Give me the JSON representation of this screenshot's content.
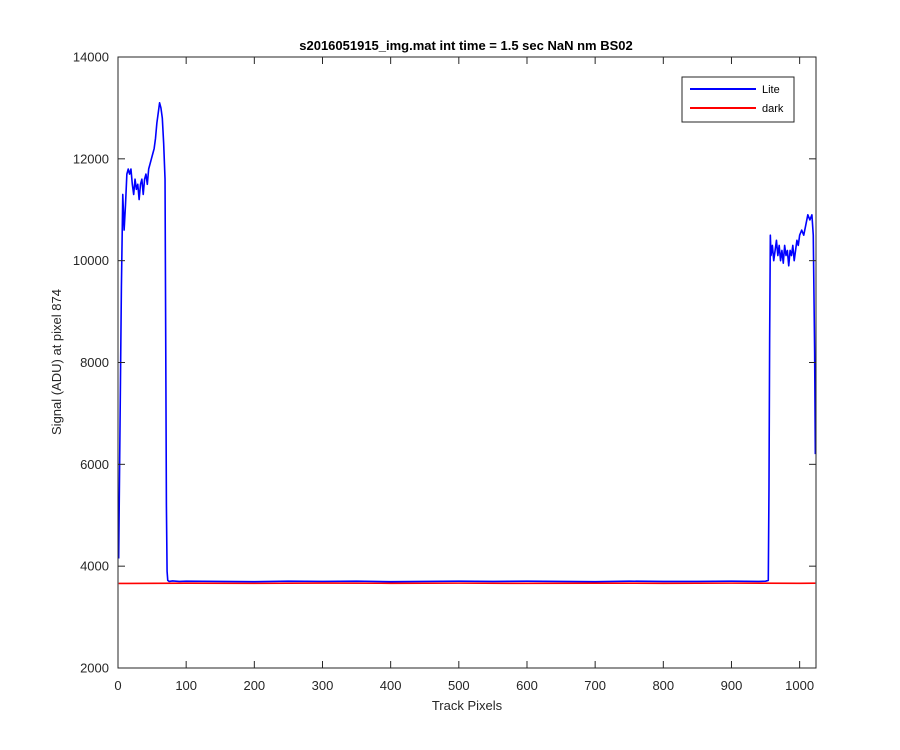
{
  "colors": {
    "background": "#ffffff",
    "axis": "#262626",
    "lite": "#0000ff",
    "dark": "#ff0000"
  },
  "chart_data": {
    "type": "line",
    "title": "s2016051915_img.mat int time = 1.5 sec  NaN nm BS02",
    "xlabel": "Track Pixels",
    "ylabel": "Signal (ADU) at pixel 874",
    "xlim": [
      0,
      1024
    ],
    "ylim": [
      2000,
      14000
    ],
    "xticks": [
      0,
      100,
      200,
      300,
      400,
      500,
      600,
      700,
      800,
      900,
      1000
    ],
    "yticks": [
      2000,
      4000,
      6000,
      8000,
      10000,
      12000,
      14000
    ],
    "grid": false,
    "legend_position": "top-right",
    "series": [
      {
        "name": "Lite",
        "color": "#0000ff",
        "points": [
          [
            1,
            4150
          ],
          [
            3,
            6800
          ],
          [
            5,
            9500
          ],
          [
            7,
            11300
          ],
          [
            9,
            10600
          ],
          [
            11,
            11100
          ],
          [
            13,
            11700
          ],
          [
            15,
            11800
          ],
          [
            17,
            11700
          ],
          [
            19,
            11800
          ],
          [
            21,
            11500
          ],
          [
            23,
            11300
          ],
          [
            25,
            11600
          ],
          [
            27,
            11400
          ],
          [
            29,
            11500
          ],
          [
            31,
            11200
          ],
          [
            33,
            11500
          ],
          [
            35,
            11600
          ],
          [
            37,
            11300
          ],
          [
            39,
            11600
          ],
          [
            41,
            11700
          ],
          [
            43,
            11500
          ],
          [
            45,
            11800
          ],
          [
            47,
            11900
          ],
          [
            49,
            12000
          ],
          [
            51,
            12100
          ],
          [
            53,
            12200
          ],
          [
            55,
            12400
          ],
          [
            57,
            12700
          ],
          [
            59,
            12900
          ],
          [
            61,
            13100
          ],
          [
            63,
            13000
          ],
          [
            65,
            12800
          ],
          [
            67,
            12300
          ],
          [
            69,
            11600
          ],
          [
            70,
            8500
          ],
          [
            71,
            5200
          ],
          [
            72,
            3900
          ],
          [
            73,
            3720
          ],
          [
            75,
            3700
          ],
          [
            80,
            3710
          ],
          [
            90,
            3700
          ],
          [
            100,
            3705
          ],
          [
            150,
            3700
          ],
          [
            200,
            3695
          ],
          [
            250,
            3705
          ],
          [
            300,
            3700
          ],
          [
            350,
            3705
          ],
          [
            400,
            3695
          ],
          [
            450,
            3700
          ],
          [
            500,
            3705
          ],
          [
            550,
            3700
          ],
          [
            600,
            3705
          ],
          [
            650,
            3700
          ],
          [
            700,
            3695
          ],
          [
            750,
            3705
          ],
          [
            800,
            3700
          ],
          [
            850,
            3700
          ],
          [
            900,
            3705
          ],
          [
            940,
            3700
          ],
          [
            950,
            3705
          ],
          [
            954,
            3720
          ],
          [
            955,
            5500
          ],
          [
            956,
            8500
          ],
          [
            957,
            10500
          ],
          [
            958,
            10100
          ],
          [
            960,
            10300
          ],
          [
            962,
            10000
          ],
          [
            964,
            10200
          ],
          [
            966,
            10400
          ],
          [
            968,
            10100
          ],
          [
            970,
            10300
          ],
          [
            972,
            10000
          ],
          [
            974,
            10200
          ],
          [
            976,
            9950
          ],
          [
            978,
            10300
          ],
          [
            980,
            10100
          ],
          [
            982,
            10200
          ],
          [
            984,
            9900
          ],
          [
            986,
            10200
          ],
          [
            988,
            10100
          ],
          [
            990,
            10300
          ],
          [
            992,
            10000
          ],
          [
            994,
            10200
          ],
          [
            996,
            10400
          ],
          [
            998,
            10300
          ],
          [
            1000,
            10500
          ],
          [
            1003,
            10600
          ],
          [
            1006,
            10500
          ],
          [
            1009,
            10700
          ],
          [
            1012,
            10900
          ],
          [
            1015,
            10800
          ],
          [
            1018,
            10900
          ],
          [
            1020,
            10500
          ],
          [
            1022,
            8200
          ],
          [
            1023,
            6200
          ]
        ]
      },
      {
        "name": "dark",
        "color": "#ff0000",
        "points": [
          [
            1,
            3660
          ],
          [
            100,
            3665
          ],
          [
            200,
            3662
          ],
          [
            300,
            3668
          ],
          [
            400,
            3664
          ],
          [
            500,
            3667
          ],
          [
            600,
            3663
          ],
          [
            700,
            3666
          ],
          [
            800,
            3664
          ],
          [
            900,
            3667
          ],
          [
            1000,
            3663
          ],
          [
            1023,
            3665
          ]
        ]
      }
    ]
  }
}
